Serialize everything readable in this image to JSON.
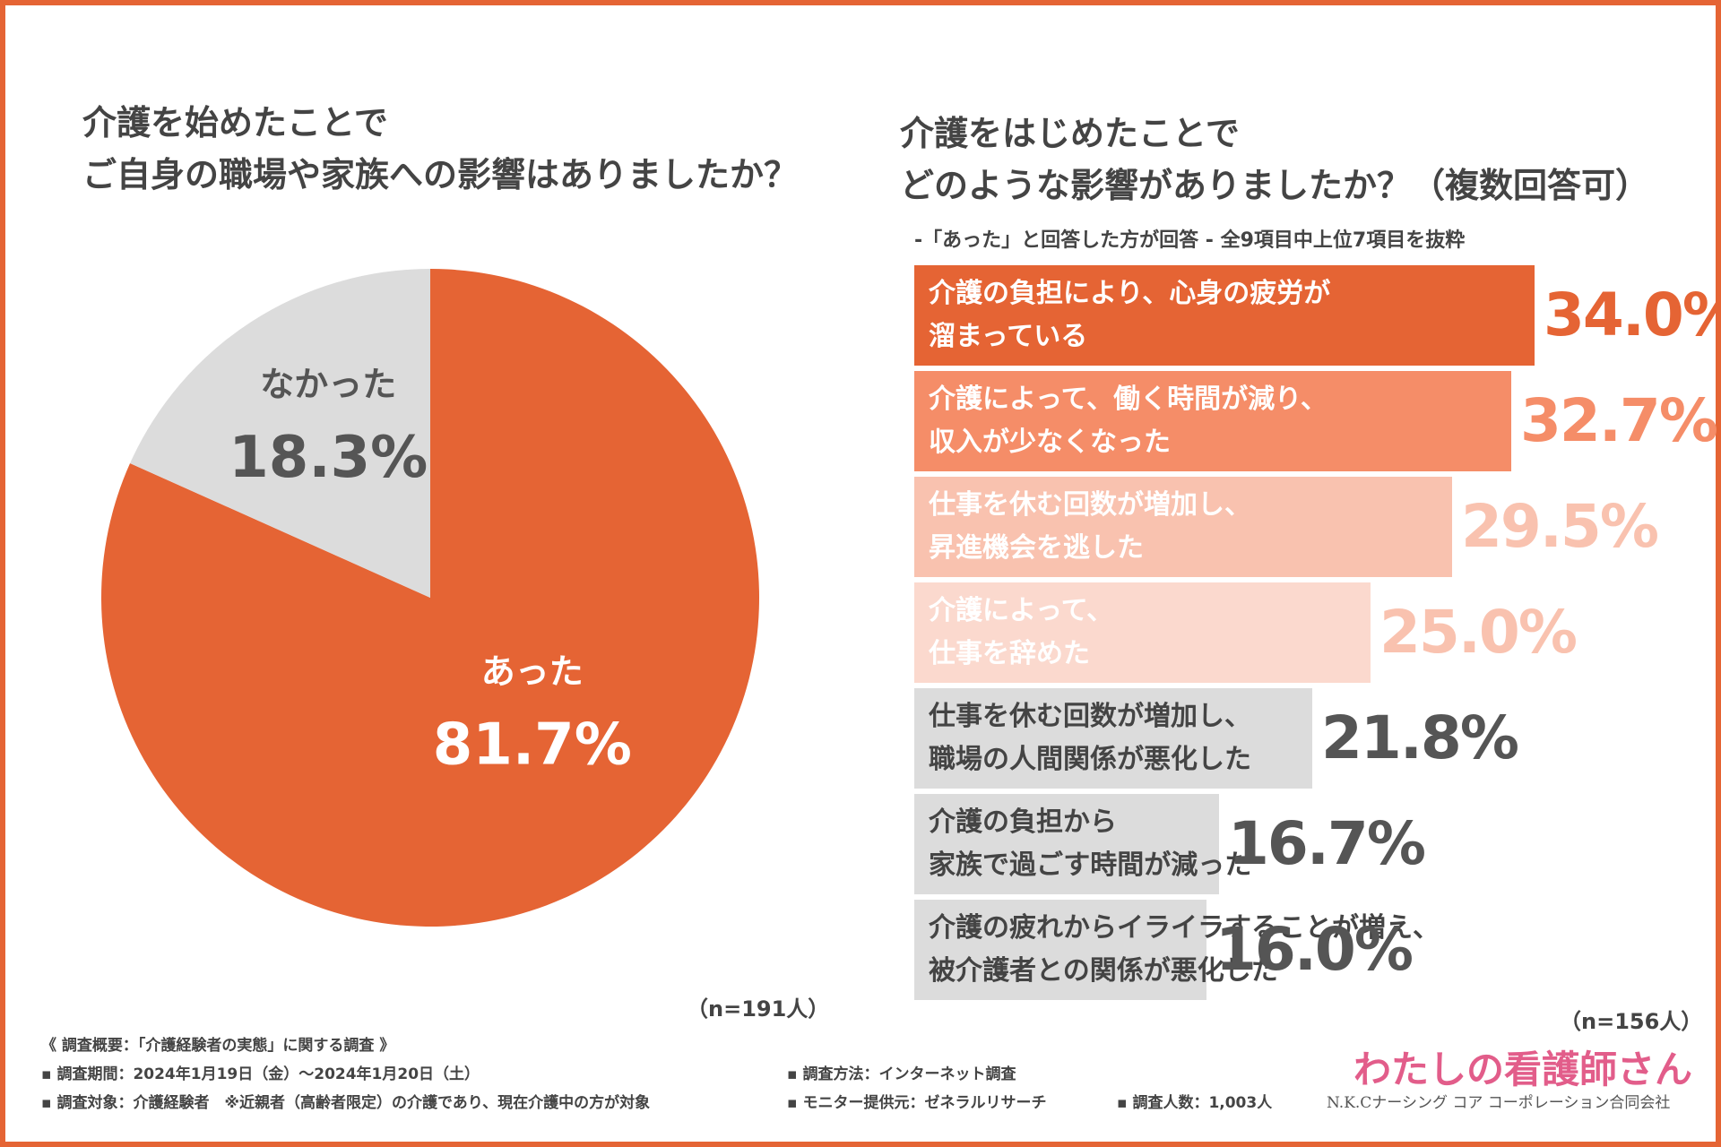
{
  "colors": {
    "frame": "#e56434",
    "accent": "#e56434",
    "gray_slice": "#dcdcdc",
    "text": "#444444",
    "brand_pink": "#e25d8a"
  },
  "left": {
    "title_line1": "介護を始めたことで",
    "title_line2": "ご自身の職場や家族への影響はありましたか？",
    "n_note": "（n=191人）"
  },
  "right": {
    "title_line1": "介護をはじめたことで",
    "title_line2": "どのような影響がありましたか？（複数回答可）",
    "subtitle": "-「あった」と回答した方が回答 -  全9項目中上位7項目を抜粋",
    "n_note": "（n=156人）"
  },
  "chart_data": [
    {
      "type": "pie",
      "title": "介護を始めたことでご自身の職場や家族への影響はありましたか？",
      "slices": [
        {
          "label": "あった",
          "value": 81.7,
          "value_text": "81.7%",
          "color": "#e56434",
          "text_color": "#ffffff"
        },
        {
          "label": "なかった",
          "value": 18.3,
          "value_text": "18.3%",
          "color": "#dcdcdc",
          "text_color": "#555555"
        }
      ],
      "start_angle_deg": 0,
      "direction": "clockwise",
      "n": "n=191人"
    },
    {
      "type": "bar",
      "orientation": "horizontal",
      "title": "介護をはじめたことでどのような影響がありましたか？（複数回答可）",
      "xlim": [
        0,
        34.0
      ],
      "bars": [
        {
          "line1": "介護の負担により、心身の疲労が",
          "line2": "溜まっている",
          "value": 34.0,
          "value_text": "34.0%",
          "fill": "#e56434",
          "label_color": "#ffffff",
          "value_color": "#e56434"
        },
        {
          "line1": "介護によって、働く時間が減り、",
          "line2": "収入が少なくなった",
          "value": 32.7,
          "value_text": "32.7%",
          "fill": "#f58d68",
          "label_color": "#ffffff",
          "value_color": "#f58d68"
        },
        {
          "line1": "仕事を休む回数が増加し、",
          "line2": "昇進機会を逃した",
          "value": 29.5,
          "value_text": "29.5%",
          "fill": "#f9c2af",
          "label_color": "#ffffff",
          "value_color": "#f9c2af"
        },
        {
          "line1": "介護によって、",
          "line2": "仕事を辞めた",
          "value": 25.0,
          "value_text": "25.0%",
          "fill": "#fbd9ce",
          "label_color": "#ffffff",
          "value_color": "#f9c2af"
        },
        {
          "line1": "仕事を休む回数が増加し、",
          "line2": "職場の人間関係が悪化した",
          "value": 21.8,
          "value_text": "21.8%",
          "fill": "#dcdcdc",
          "label_color": "#444444",
          "value_color": "#555555"
        },
        {
          "line1": "介護の負担から",
          "line2": "家族で過ごす時間が減った",
          "value": 16.7,
          "value_text": "16.7%",
          "fill": "#dcdcdc",
          "label_color": "#444444",
          "value_color": "#555555"
        },
        {
          "line1": "介護の疲れからイライラすることが増え、",
          "line2": "被介護者との関係が悪化した",
          "value": 16.0,
          "value_text": "16.0%",
          "fill": "#dcdcdc",
          "label_color": "#444444",
          "value_color": "#555555"
        }
      ],
      "n": "n=156人"
    }
  ],
  "footer": {
    "overview": "《 調査概要：「介護経験者の実態」に関する調査 》",
    "period": "▪ 調査期間：2024年1月19日（金）〜2024年1月20日（土）",
    "target": "▪ 調査対象：介護経験者　※近親者（高齢者限定）の介護であり、現在介護中の方が対象",
    "method": "▪ 調査方法：インターネット調査",
    "provider": "▪ モニター提供元：ゼネラルリサーチ",
    "count": "▪ 調査人数：1,003人"
  },
  "brand": {
    "logo_text": "わたしの看護師さん",
    "company": "N.K.Cナーシング コア コーポレーション合同会社"
  }
}
